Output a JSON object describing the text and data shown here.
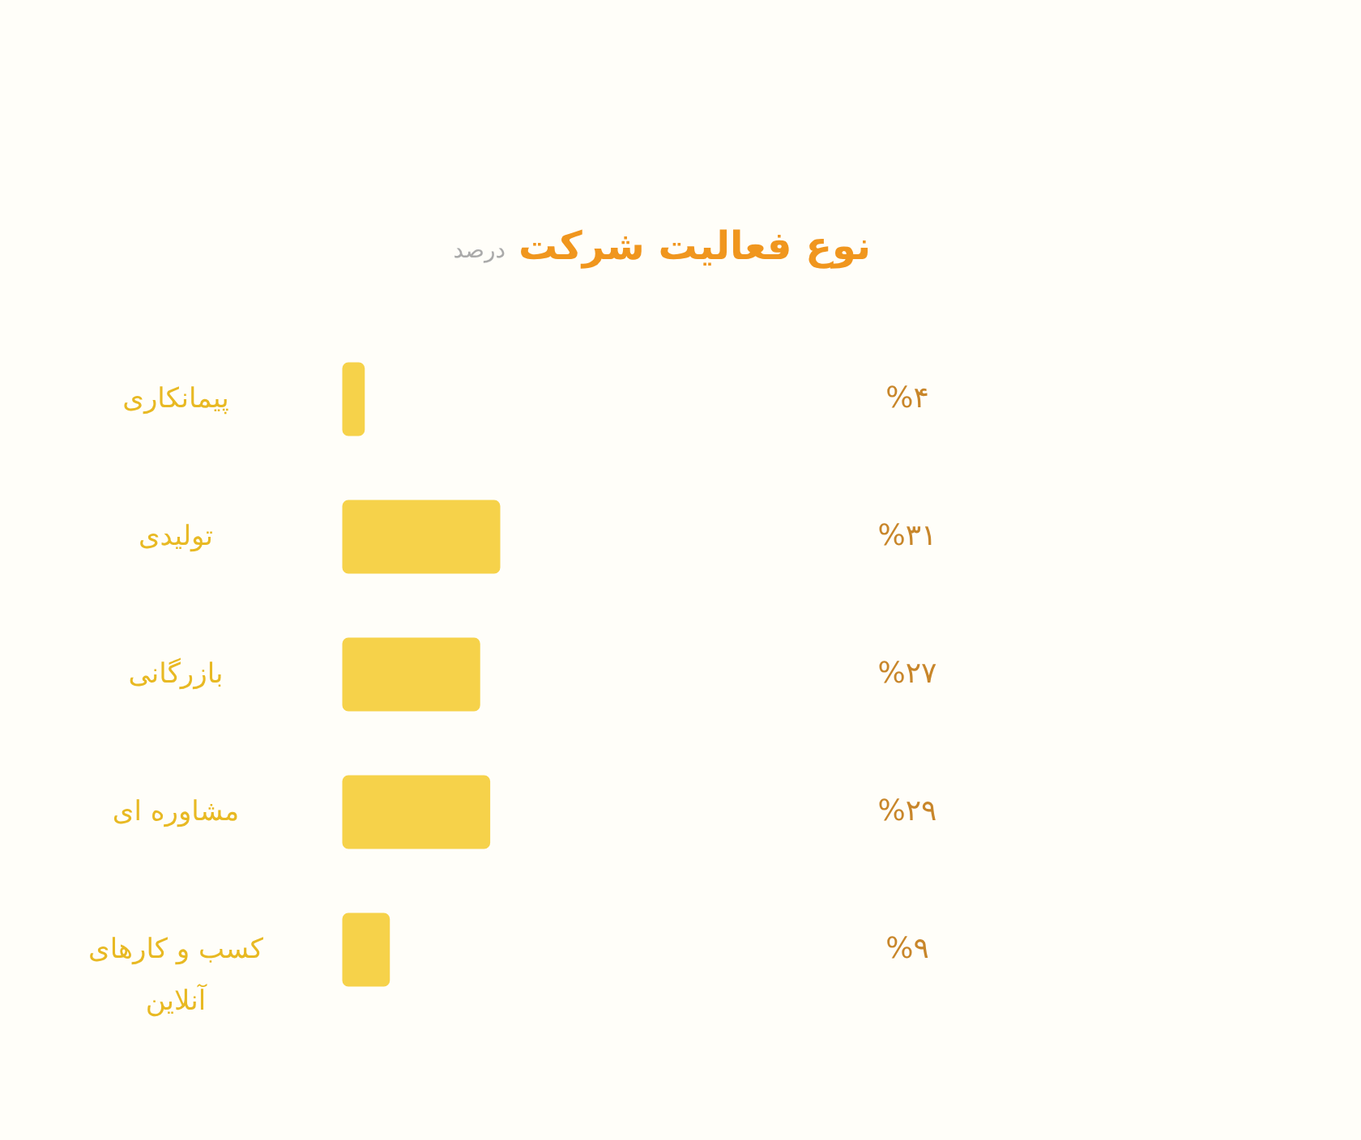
{
  "chart_data": {
    "type": "bar",
    "orientation": "horizontal",
    "title": "نوع فعالیت شرکت",
    "subtitle": "درصد",
    "categories": [
      "پیمانکاری",
      "تولیدی",
      "بازرگانی",
      "مشاوره ای",
      "کسب و کارهای آنلاین"
    ],
    "values": [
      4,
      31,
      27,
      29,
      9
    ],
    "color": "#f6d24a",
    "value_labels": [
      "%۴",
      "%۳۱",
      "%۲۷",
      "%۲۹",
      "%۹"
    ],
    "tick_labels": "y"
  }
}
